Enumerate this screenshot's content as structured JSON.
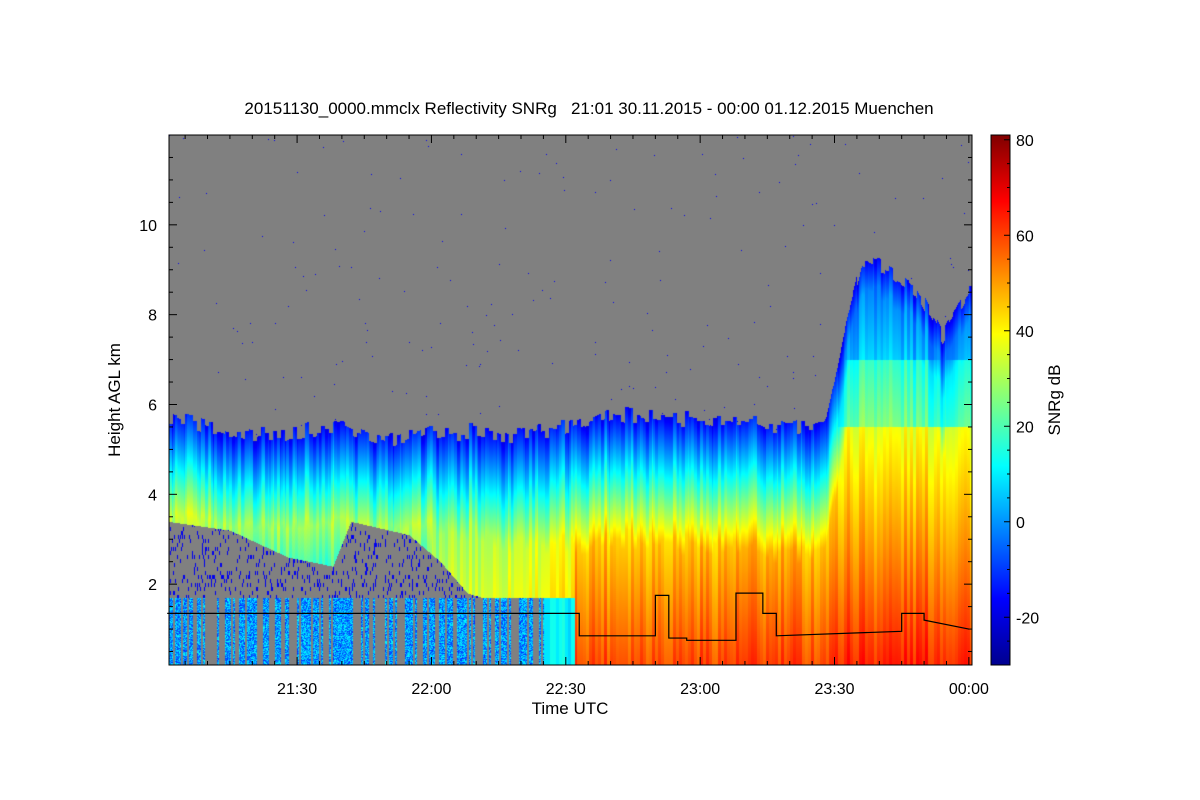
{
  "chart_data": {
    "type": "heatmap",
    "title": "20151130_0000.mmclx Reflectivity SNRg   21:01 30.11.2015 - 00:00 01.12.2015 Muenchen",
    "xlabel": "Time UTC",
    "ylabel": "Height AGL km",
    "colorbar_label": "SNRg dB",
    "x_range_minutes_after_2100": [
      1.4,
      180.7
    ],
    "y_range_km": [
      0.2,
      12.0
    ],
    "color_range_db": [
      -30,
      81
    ],
    "x_ticks": [
      {
        "min": 30,
        "label": "21:30"
      },
      {
        "min": 60,
        "label": "22:00"
      },
      {
        "min": 90,
        "label": "22:30"
      },
      {
        "min": 120,
        "label": "23:00"
      },
      {
        "min": 150,
        "label": "23:30"
      },
      {
        "min": 180,
        "label": "00:00"
      }
    ],
    "y_ticks": [
      {
        "v": 2,
        "label": "2"
      },
      {
        "v": 4,
        "label": "4"
      },
      {
        "v": 6,
        "label": "6"
      },
      {
        "v": 8,
        "label": "8"
      },
      {
        "v": 10,
        "label": "10"
      }
    ],
    "colorbar_ticks": [
      {
        "v": -20,
        "label": "-20"
      },
      {
        "v": 0,
        "label": "0"
      },
      {
        "v": 20,
        "label": "20"
      },
      {
        "v": 40,
        "label": "40"
      },
      {
        "v": 60,
        "label": "60"
      },
      {
        "v": 80,
        "label": "80"
      }
    ],
    "no_data_color": "#808080",
    "cloud_top_km": [
      [
        1,
        5.7
      ],
      [
        10,
        5.5
      ],
      [
        20,
        5.3
      ],
      [
        30,
        5.4
      ],
      [
        40,
        5.5
      ],
      [
        50,
        5.2
      ],
      [
        60,
        5.4
      ],
      [
        70,
        5.4
      ],
      [
        80,
        5.3
      ],
      [
        90,
        5.5
      ],
      [
        100,
        5.8
      ],
      [
        110,
        5.7
      ],
      [
        120,
        5.7
      ],
      [
        130,
        5.6
      ],
      [
        140,
        5.5
      ],
      [
        148,
        5.6
      ],
      [
        152,
        7.5
      ],
      [
        156,
        9.2
      ],
      [
        162,
        9.0
      ],
      [
        168,
        8.6
      ],
      [
        174,
        7.5
      ],
      [
        180,
        8.5
      ]
    ],
    "lower_gap_base_km": [
      [
        1,
        3.4
      ],
      [
        15,
        3.2
      ],
      [
        28,
        2.6
      ],
      [
        38,
        2.4
      ],
      [
        42,
        3.4
      ],
      [
        55,
        3.1
      ],
      [
        62,
        2.5
      ],
      [
        68,
        1.8
      ],
      [
        75,
        1.6
      ],
      [
        82,
        1.5
      ],
      [
        88,
        0.8
      ],
      [
        92,
        0.2
      ]
    ],
    "ceilometer_line_km": [
      [
        1,
        1.35
      ],
      [
        93,
        1.35
      ],
      [
        93,
        0.85
      ],
      [
        110,
        0.85
      ],
      [
        110,
        1.75
      ],
      [
        113,
        1.75
      ],
      [
        113,
        0.8
      ],
      [
        117,
        0.8
      ],
      [
        117,
        0.75
      ],
      [
        128,
        0.75
      ],
      [
        128,
        1.8
      ],
      [
        134,
        1.8
      ],
      [
        134,
        1.35
      ],
      [
        137,
        1.35
      ],
      [
        137,
        0.85
      ],
      [
        165,
        0.95
      ],
      [
        165,
        1.35
      ],
      [
        170,
        1.35
      ],
      [
        170,
        1.2
      ],
      [
        180,
        1.0
      ]
    ]
  }
}
